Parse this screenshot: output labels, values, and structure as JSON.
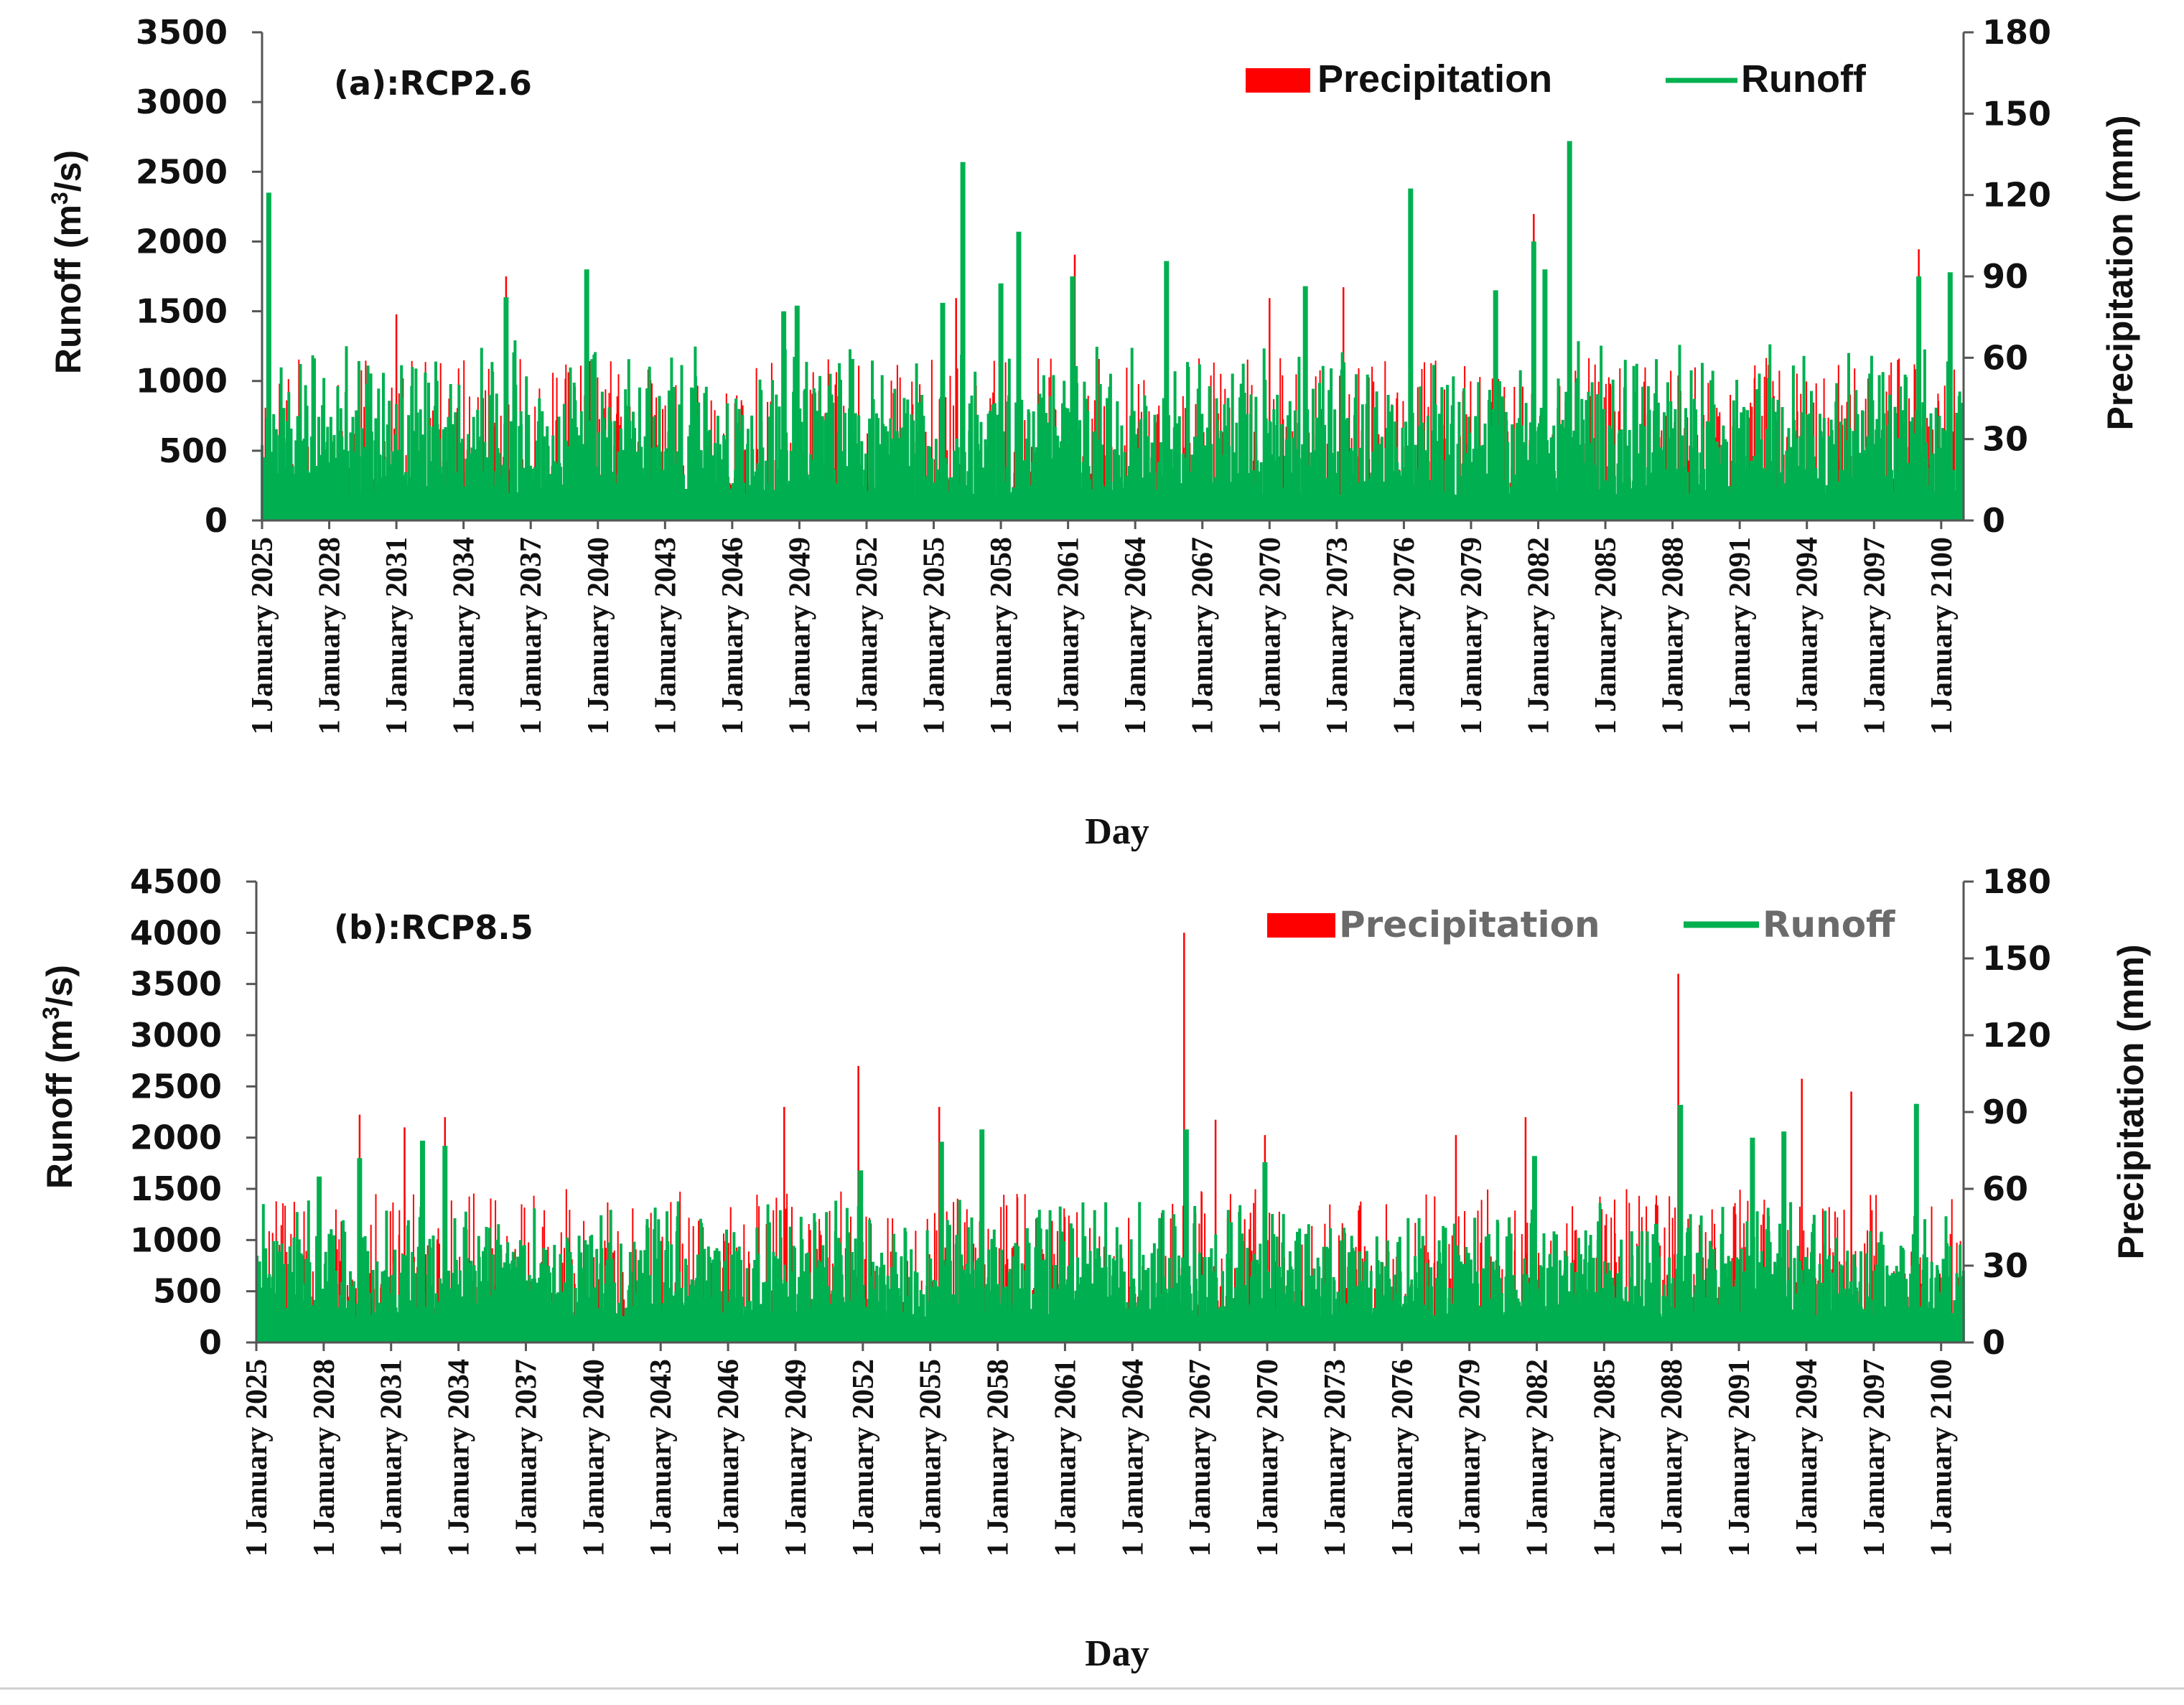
{
  "chart_data": [
    {
      "type": "bar+line",
      "panel_label": "(a):RCP2.6",
      "xlabel": "Day",
      "ylabel_left": "Runoff (m",
      "ylabel_left_sup": "3",
      "ylabel_left_end": "/s)",
      "ylabel_right": "Precipitation (mm)",
      "ylim_left": [
        0,
        3500
      ],
      "ylim_right": [
        0,
        180
      ],
      "yticks_left": [
        "0",
        "500",
        "1000",
        "1500",
        "2000",
        "2500",
        "3000",
        "3500"
      ],
      "yticks_right": [
        "0",
        "30",
        "60",
        "90",
        "120",
        "150",
        "180"
      ],
      "x_tick_labels": [
        "1 January 2025",
        "1 January 2028",
        "1 January 2031",
        "1 January 2034",
        "1 January 2037",
        "1 January 2040",
        "1 January 2043",
        "1 January 2046",
        "1 January 2049",
        "1 January 2052",
        "1 January 2055",
        "1 January 2058",
        "1 January 2061",
        "1 January 2064",
        "1 January 2067",
        "1 January 2070",
        "1 January 2073",
        "1 January 2076",
        "1 January 2079",
        "1 January 2082",
        "1 January 2085",
        "1 January 2088",
        "1 January 2091",
        "1 January 2094",
        "1 January 2097",
        "1 January 2100"
      ],
      "x_range_years": [
        2025,
        2101
      ],
      "legend": [
        {
          "name": "Precipitation",
          "color": "#ff0000",
          "shape": "bar"
        },
        {
          "name": "Runoff",
          "color": "#00b050",
          "shape": "line"
        }
      ],
      "legend_placement": "top-right",
      "series": [
        {
          "name": "Runoff",
          "axis": "left",
          "color": "#00b050",
          "baseline": 350,
          "peak_fraction_of_baseline_range": [
            180,
            1300
          ],
          "notable_peaks": [
            {
              "year": 2025.3,
              "value": 2350
            },
            {
              "year": 2035.9,
              "value": 1600
            },
            {
              "year": 2039.5,
              "value": 1800
            },
            {
              "year": 2048.3,
              "value": 1500
            },
            {
              "year": 2048.9,
              "value": 1540
            },
            {
              "year": 2055.4,
              "value": 1560
            },
            {
              "year": 2056.3,
              "value": 2570
            },
            {
              "year": 2058.0,
              "value": 1700
            },
            {
              "year": 2058.8,
              "value": 2070
            },
            {
              "year": 2061.2,
              "value": 1750
            },
            {
              "year": 2065.4,
              "value": 1860
            },
            {
              "year": 2071.6,
              "value": 1680
            },
            {
              "year": 2076.3,
              "value": 2380
            },
            {
              "year": 2080.1,
              "value": 1650
            },
            {
              "year": 2081.8,
              "value": 2000
            },
            {
              "year": 2082.3,
              "value": 1800
            },
            {
              "year": 2083.4,
              "value": 2720
            },
            {
              "year": 2099.0,
              "value": 1750
            },
            {
              "year": 2100.4,
              "value": 1780
            }
          ]
        },
        {
          "name": "Precipitation",
          "axis": "right",
          "color": "#ff0000",
          "typical_range_mm": [
            0,
            60
          ],
          "notable_peaks": [
            {
              "year": 2031.0,
              "value": 76
            },
            {
              "year": 2035.9,
              "value": 90
            },
            {
              "year": 2056.0,
              "value": 82
            },
            {
              "year": 2058.8,
              "value": 98
            },
            {
              "year": 2061.3,
              "value": 98
            },
            {
              "year": 2070.0,
              "value": 82
            },
            {
              "year": 2073.3,
              "value": 86
            },
            {
              "year": 2081.8,
              "value": 113
            },
            {
              "year": 2099.0,
              "value": 100
            }
          ]
        }
      ]
    },
    {
      "type": "bar+line",
      "panel_label": "(b):RCP8.5",
      "xlabel": "Day",
      "ylabel_left": "Runoff (m",
      "ylabel_left_sup": "3",
      "ylabel_left_end": "/s)",
      "ylabel_right": "Precipitation (mm)",
      "ylim_left": [
        0,
        4500
      ],
      "ylim_right": [
        0,
        180
      ],
      "yticks_left": [
        "0",
        "500",
        "1000",
        "1500",
        "2000",
        "2500",
        "3000",
        "3500",
        "4000",
        "4500"
      ],
      "yticks_right": [
        "0",
        "30",
        "60",
        "90",
        "120",
        "150",
        "180"
      ],
      "x_tick_labels": [
        "1 January 2025",
        "1 January 2028",
        "1 January 2031",
        "1 January 2034",
        "1 January 2037",
        "1 January 2040",
        "1 January 2043",
        "1 January 2046",
        "1 January 2049",
        "1 January 2052",
        "1 January 2055",
        "1 January 2058",
        "1 January 2061",
        "1 January 2064",
        "1 January 2067",
        "1 January 2070",
        "1 January 2073",
        "1 January 2076",
        "1 January 2079",
        "1 January 2082",
        "1 January 2085",
        "1 January 2088",
        "1 January 2091",
        "1 January 2094",
        "1 January 2097",
        "1 January 2100"
      ],
      "x_range_years": [
        2025,
        2101
      ],
      "legend": [
        {
          "name": "Precipitation",
          "color": "#ff0000",
          "shape": "bar"
        },
        {
          "name": "Runoff",
          "color": "#00b050",
          "shape": "line"
        }
      ],
      "legend_placement": "top-right",
      "series": [
        {
          "name": "Runoff",
          "axis": "left",
          "color": "#00b050",
          "baseline": 500,
          "peak_fraction_of_baseline_range": [
            250,
            1400
          ],
          "notable_peaks": [
            {
              "year": 2027.8,
              "value": 1620
            },
            {
              "year": 2029.6,
              "value": 1800
            },
            {
              "year": 2032.4,
              "value": 1970
            },
            {
              "year": 2033.4,
              "value": 1920
            },
            {
              "year": 2051.9,
              "value": 1680
            },
            {
              "year": 2055.5,
              "value": 1960
            },
            {
              "year": 2057.3,
              "value": 2080
            },
            {
              "year": 2066.4,
              "value": 2080
            },
            {
              "year": 2069.9,
              "value": 1760
            },
            {
              "year": 2081.9,
              "value": 1820
            },
            {
              "year": 2088.4,
              "value": 2320
            },
            {
              "year": 2091.6,
              "value": 2000
            },
            {
              "year": 2093.0,
              "value": 2060
            },
            {
              "year": 2098.9,
              "value": 2330
            }
          ]
        },
        {
          "name": "Precipitation",
          "axis": "right",
          "color": "#ff0000",
          "typical_range_mm": [
            0,
            60
          ],
          "notable_peaks": [
            {
              "year": 2029.6,
              "value": 89
            },
            {
              "year": 2031.6,
              "value": 84
            },
            {
              "year": 2033.4,
              "value": 88
            },
            {
              "year": 2048.5,
              "value": 92
            },
            {
              "year": 2051.8,
              "value": 108
            },
            {
              "year": 2055.4,
              "value": 92
            },
            {
              "year": 2066.3,
              "value": 160
            },
            {
              "year": 2067.7,
              "value": 87
            },
            {
              "year": 2069.9,
              "value": 81
            },
            {
              "year": 2078.4,
              "value": 81
            },
            {
              "year": 2081.5,
              "value": 88
            },
            {
              "year": 2088.3,
              "value": 144
            },
            {
              "year": 2093.8,
              "value": 103
            },
            {
              "year": 2096.0,
              "value": 98
            }
          ]
        }
      ]
    }
  ]
}
